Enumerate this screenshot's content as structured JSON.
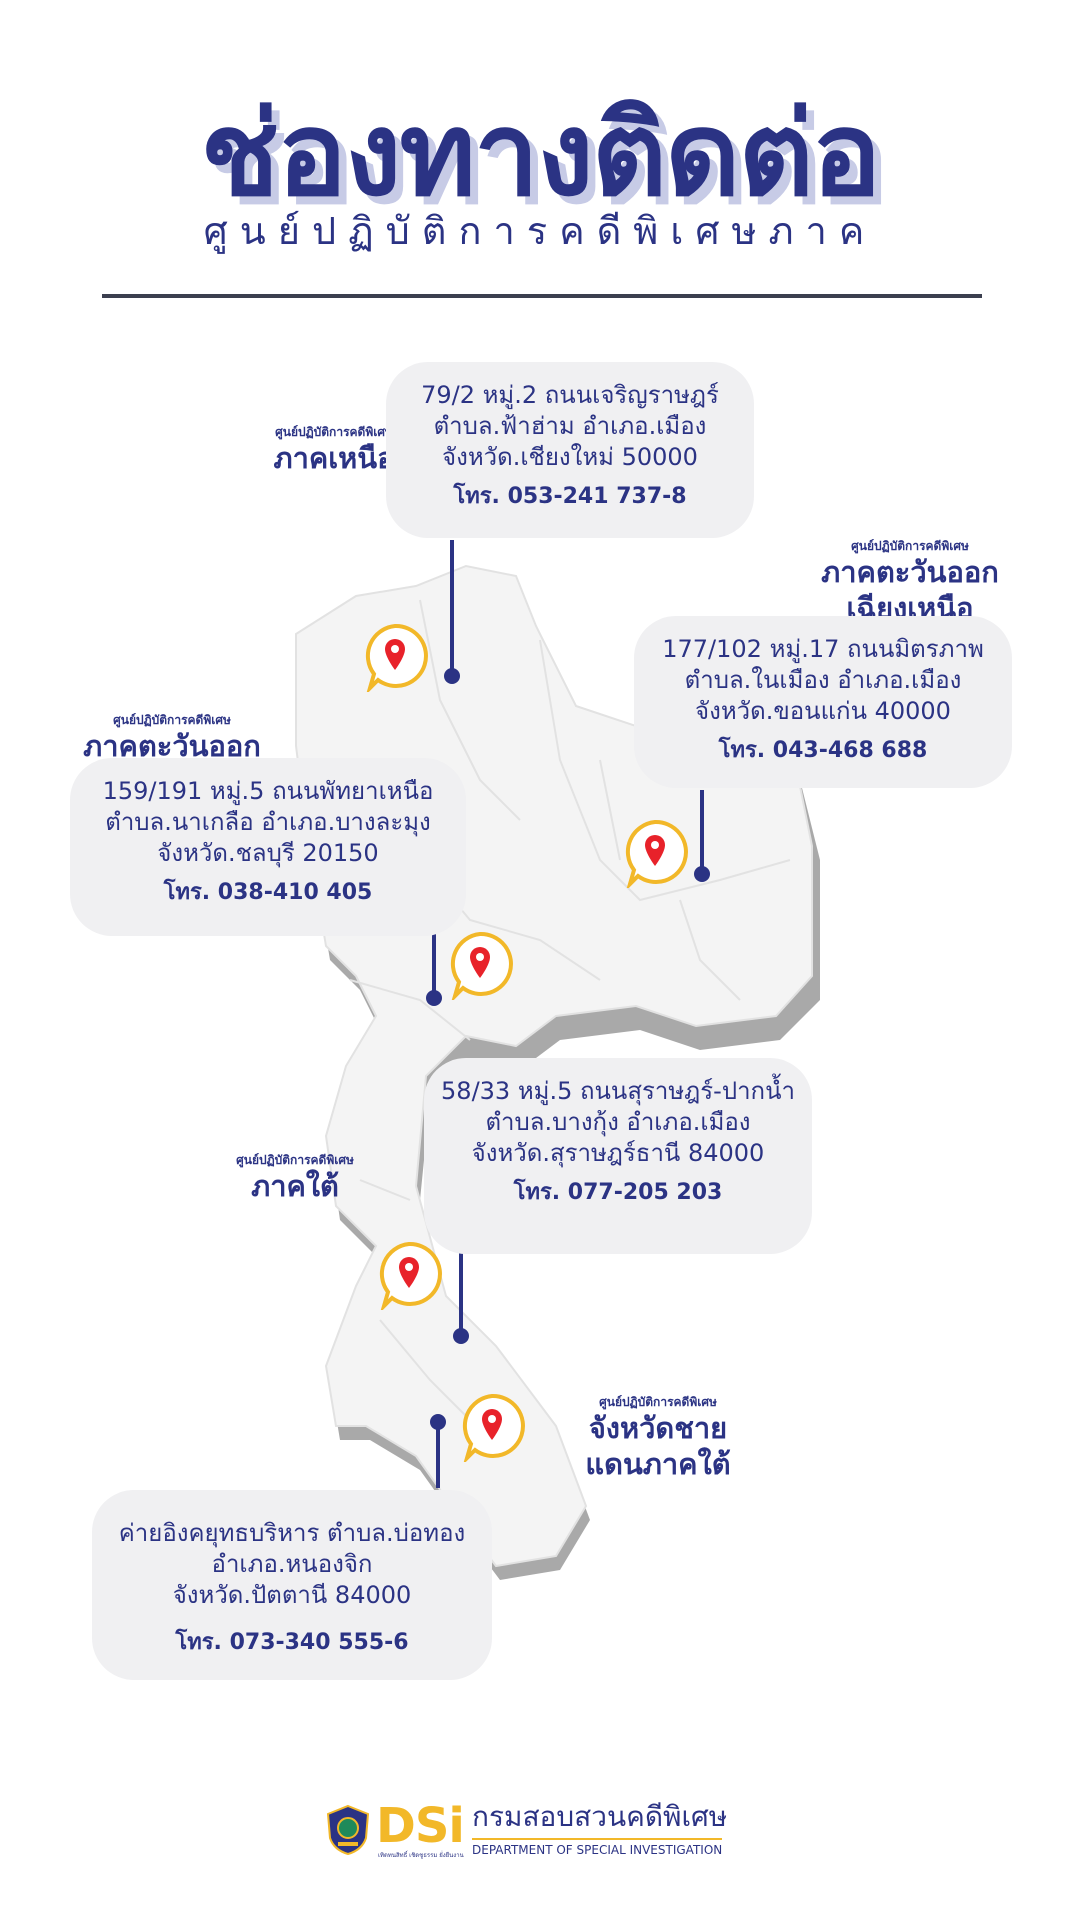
{
  "header": {
    "title": "ช่องทางติดต่อ",
    "subtitle": "ศูนย์ปฏิบัติการคดีพิเศษภาค"
  },
  "colors": {
    "primary": "#2b3384",
    "accent_gold": "#f2b829",
    "pin_red": "#e8222a",
    "card_bg": "#f0f0f2",
    "map_fill": "#f4f4f4",
    "map_shadow": "#a9a9a9"
  },
  "centers": [
    {
      "label_small": "ศูนย์ปฏิบัติการคดีพิเศษ",
      "label_big": [
        "ภาคเหนือ"
      ],
      "address": [
        "79/2 หมู่.2 ถนนเจริญราษฎร์",
        "ตำบล.ฟ้าฮ่าม อำเภอ.เมือง",
        "จังหวัด.เชียงใหม่  50000"
      ],
      "tel": "โทร. 053-241 737-8"
    },
    {
      "label_small": "ศูนย์ปฏิบัติการคดีพิเศษ",
      "label_big": [
        "ภาคตะวันออก",
        "เฉียงเหนือ"
      ],
      "address": [
        "177/102 หมู่.17 ถนนมิตรภาพ",
        "ตำบล.ในเมือง อำเภอ.เมือง",
        "จังหวัด.ขอนแก่น  40000"
      ],
      "tel": "โทร. 043-468 688"
    },
    {
      "label_small": "ศูนย์ปฏิบัติการคดีพิเศษ",
      "label_big": [
        "ภาคตะวันออก"
      ],
      "address": [
        "159/191 หมู่.5 ถนนพัทยาเหนือ",
        "ตำบล.นาเกลือ อำเภอ.บางละมุง",
        "จังหวัด.ชลบุรี  20150"
      ],
      "tel": "โทร. 038-410 405"
    },
    {
      "label_small": "ศูนย์ปฏิบัติการคดีพิเศษ",
      "label_big": [
        "ภาคใต้"
      ],
      "address": [
        "58/33 หมู่.5 ถนนสุราษฎร์-ปากน้ำ",
        "ตำบล.บางกุ้ง อำเภอ.เมือง",
        "จังหวัด.สุราษฎร์ธานี  84000"
      ],
      "tel": "โทร. 077-205 203"
    },
    {
      "label_small": "ศูนย์ปฏิบัติการคดีพิเศษ",
      "label_big": [
        "จังหวัดชาย",
        "แดนภาคใต้"
      ],
      "address": [
        "ค่ายอิงคยุทธบริหาร ตำบล.บ่อทอง",
        "อำเภอ.หนองจิก",
        "จังหวัด.ปัตตานี  84000"
      ],
      "tel": "โทร. 073-340 555-6"
    }
  ],
  "footer": {
    "logo_text": "DSi",
    "logo_tagline": "เทิดทนสิทธิ์ เชิดชูธรรม ยั่งยืนงาน",
    "org_th": "กรมสอบสวนคดีพิเศษ",
    "org_en": "DEPARTMENT OF SPECIAL INVESTIGATION",
    "seal_icon": "dsi-seal-icon"
  }
}
